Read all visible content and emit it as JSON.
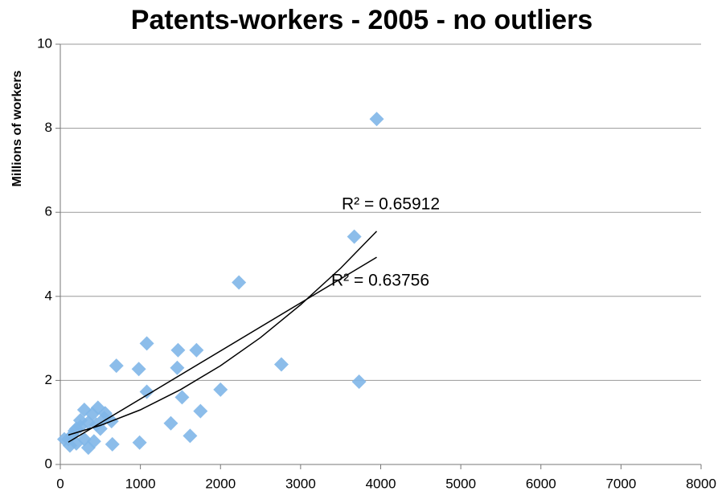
{
  "chart_data": {
    "type": "scatter",
    "title": "Patents-workers - 2005 - no outliers",
    "y_label": "Millions of workers",
    "xlim": [
      0,
      8000
    ],
    "xticks": [
      0,
      1000,
      2000,
      3000,
      4000,
      5000,
      6000,
      7000,
      8000
    ],
    "ylim": [
      0,
      10
    ],
    "yticks": [
      0,
      2,
      4,
      6,
      8,
      10
    ],
    "grid": true,
    "series": [
      {
        "color": "#7fb6e8",
        "x": [
          3950,
          3670,
          2230,
          1080,
          1470,
          1700,
          700,
          980,
          1460,
          2760,
          3730,
          1080,
          1520,
          2000,
          1750,
          1380,
          1620,
          990,
          650,
          640,
          560,
          470,
          300,
          400,
          350,
          250,
          200,
          150,
          100,
          50,
          120,
          200,
          300,
          350,
          420,
          500,
          250,
          180,
          450,
          550
        ],
        "values": [
          8.22,
          5.42,
          4.33,
          2.88,
          2.72,
          2.72,
          2.35,
          2.27,
          2.3,
          2.38,
          1.97,
          1.73,
          1.6,
          1.78,
          1.27,
          0.98,
          0.68,
          0.52,
          0.48,
          1.03,
          1.22,
          1.35,
          1.3,
          1.2,
          1.0,
          0.9,
          0.85,
          0.7,
          0.6,
          0.6,
          0.45,
          0.5,
          0.6,
          0.4,
          0.55,
          0.85,
          1.05,
          0.8,
          0.95,
          1.1
        ]
      }
    ],
    "trendlines": [
      {
        "label": "R² = 0.65912",
        "color": "#000000",
        "x": [
          100,
          500,
          1000,
          1500,
          2000,
          2500,
          3000,
          3500,
          3950
        ],
        "values": [
          0.7,
          0.93,
          1.3,
          1.78,
          2.35,
          3.02,
          3.8,
          4.67,
          5.55
        ]
      },
      {
        "label": "R² = 0.63756",
        "color": "#000000",
        "x": [
          100,
          3950
        ],
        "values": [
          0.53,
          4.93
        ]
      }
    ]
  }
}
